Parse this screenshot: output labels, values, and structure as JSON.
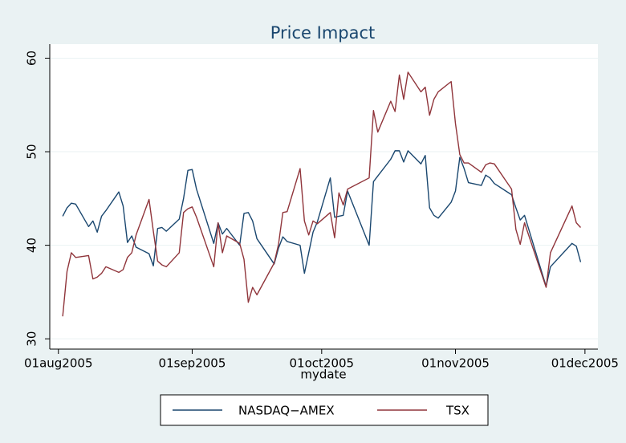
{
  "chart_data": {
    "type": "line",
    "title": "Price Impact",
    "x_label": "mydate",
    "x": [
      "2005-08-02",
      "2005-08-03",
      "2005-08-04",
      "2005-08-05",
      "2005-08-08",
      "2005-08-09",
      "2005-08-10",
      "2005-08-11",
      "2005-08-12",
      "2005-08-15",
      "2005-08-16",
      "2005-08-17",
      "2005-08-18",
      "2005-08-19",
      "2005-08-22",
      "2005-08-23",
      "2005-08-24",
      "2005-08-25",
      "2005-08-26",
      "2005-08-29",
      "2005-08-30",
      "2005-08-31",
      "2005-09-01",
      "2005-09-02",
      "2005-09-06",
      "2005-09-07",
      "2005-09-08",
      "2005-09-09",
      "2005-09-12",
      "2005-09-13",
      "2005-09-14",
      "2005-09-15",
      "2005-09-16",
      "2005-09-20",
      "2005-09-21",
      "2005-09-22",
      "2005-09-23",
      "2005-09-26",
      "2005-09-27",
      "2005-09-28",
      "2005-09-29",
      "2005-09-30",
      "2005-10-03",
      "2005-10-04",
      "2005-10-05",
      "2005-10-06",
      "2005-10-07",
      "2005-10-12",
      "2005-10-13",
      "2005-10-14",
      "2005-10-17",
      "2005-10-18",
      "2005-10-19",
      "2005-10-20",
      "2005-10-21",
      "2005-10-24",
      "2005-10-25",
      "2005-10-26",
      "2005-10-27",
      "2005-10-28",
      "2005-10-31",
      "2005-11-01",
      "2005-11-02",
      "2005-11-03",
      "2005-11-04",
      "2005-11-07",
      "2005-11-08",
      "2005-11-09",
      "2005-11-10",
      "2005-11-14",
      "2005-11-15",
      "2005-11-16",
      "2005-11-17",
      "2005-11-22",
      "2005-11-23",
      "2005-11-28",
      "2005-11-29",
      "2005-11-30"
    ],
    "series": [
      {
        "name": "NASDAQ−AMEX",
        "color": "#1a476f",
        "values": [
          43.1,
          44.0,
          44.5,
          44.4,
          42.0,
          42.6,
          41.4,
          43.1,
          43.7,
          45.7,
          44.2,
          40.3,
          41.0,
          39.8,
          39.1,
          37.8,
          41.8,
          41.9,
          41.5,
          42.8,
          45.0,
          48.0,
          48.1,
          46.0,
          40.2,
          42.4,
          41.2,
          41.8,
          40.0,
          43.4,
          43.5,
          42.6,
          40.7,
          38.0,
          39.7,
          40.9,
          40.4,
          40.0,
          37.0,
          39.2,
          41.4,
          42.5,
          47.2,
          43.0,
          43.1,
          43.2,
          45.8,
          40.0,
          46.8,
          47.4,
          49.2,
          50.1,
          50.1,
          48.9,
          50.1,
          48.7,
          49.6,
          44.0,
          43.2,
          42.9,
          44.6,
          45.8,
          49.4,
          48.2,
          46.7,
          46.4,
          47.5,
          47.2,
          46.6,
          45.4,
          44.0,
          42.7,
          43.2,
          35.6,
          37.7,
          40.2,
          39.9,
          38.2
        ]
      },
      {
        "name": "TSX",
        "color": "#90353b",
        "values": [
          32.4,
          37.2,
          39.2,
          38.7,
          38.9,
          36.4,
          36.6,
          37.0,
          37.7,
          37.1,
          37.4,
          38.7,
          39.2,
          41.1,
          44.9,
          41.5,
          38.3,
          37.9,
          37.7,
          39.2,
          43.5,
          43.9,
          44.1,
          43.0,
          37.7,
          42.4,
          39.2,
          41.0,
          40.2,
          38.5,
          33.9,
          35.5,
          34.7,
          38.1,
          40.1,
          43.5,
          43.6,
          48.2,
          42.6,
          41.1,
          42.6,
          42.3,
          43.5,
          40.8,
          45.6,
          44.3,
          46.0,
          47.2,
          54.4,
          52.1,
          55.4,
          54.3,
          58.2,
          55.6,
          58.5,
          56.4,
          56.9,
          53.9,
          55.6,
          56.4,
          57.5,
          53.0,
          49.7,
          48.8,
          48.8,
          47.8,
          48.6,
          48.8,
          48.7,
          46.0,
          41.7,
          40.1,
          42.4,
          35.5,
          39.2,
          44.2,
          42.4,
          41.9
        ]
      }
    ],
    "xlim": [
      "2005-07-30",
      "2005-12-04"
    ],
    "xticks": [
      {
        "value": "2005-08-01",
        "label": "01aug2005"
      },
      {
        "value": "2005-09-01",
        "label": "01sep2005"
      },
      {
        "value": "2005-10-01",
        "label": "01oct2005"
      },
      {
        "value": "2005-11-01",
        "label": "01nov2005"
      },
      {
        "value": "2005-12-01",
        "label": "01dec2005"
      }
    ],
    "ylim": [
      28.9,
      61.5
    ],
    "yticks": [
      30,
      40,
      50,
      60
    ],
    "grid": true,
    "legend": "bottom"
  }
}
